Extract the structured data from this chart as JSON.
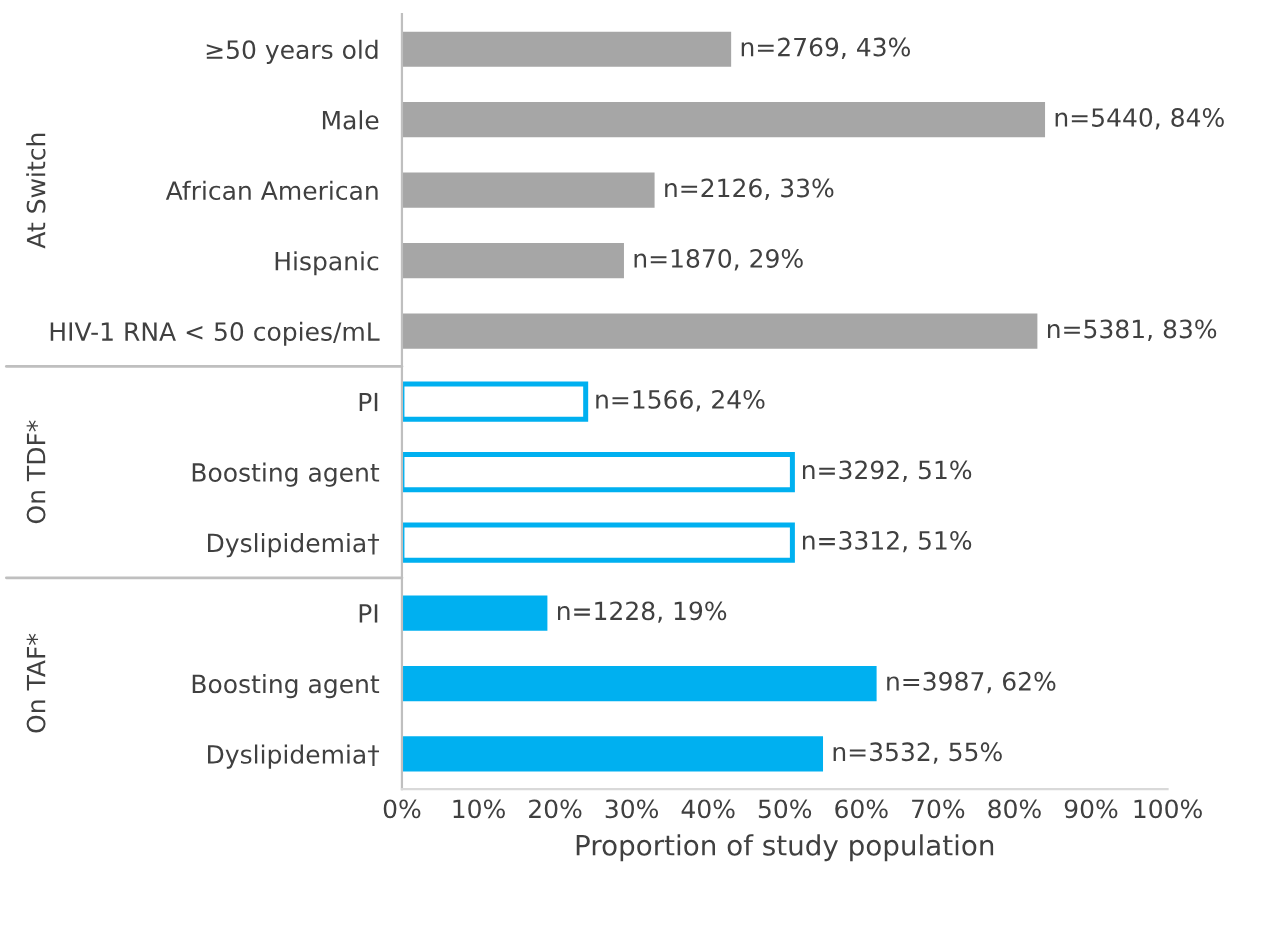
{
  "chart_data": {
    "type": "bar",
    "orientation": "horizontal",
    "xlabel": "Proportion of study population",
    "categories": [
      "≥50 years old",
      "Male",
      "African American",
      "Hispanic",
      "HIV-1 RNA < 50 copies/mL",
      "PI",
      "Boosting agent",
      "Dyslipidemia†",
      "PI",
      "Boosting agent",
      "Dyslipidemia†"
    ],
    "series": [
      {
        "color": "#a6a6a6",
        "values": [
          43,
          84,
          33,
          29,
          83,
          null,
          null,
          null,
          null,
          null,
          null
        ]
      },
      {
        "color": "#00b0f0",
        "line_style": "solid",
        "values": [
          null,
          null,
          null,
          null,
          null,
          24,
          51,
          51,
          null,
          null,
          null
        ]
      },
      {
        "color": "#00b0f0",
        "values": [
          null,
          null,
          null,
          null,
          null,
          null,
          null,
          null,
          19,
          62,
          55
        ]
      }
    ],
    "value_labels": [
      "n=2769, 43%",
      "n=5440, 84%",
      "n=2126, 33%",
      "n=1870, 29%",
      "n=5381, 83%",
      "n=1566, 24%",
      "n=3292, 51%",
      "n=3312, 51%",
      "n=1228, 19%",
      "n=3987, 62%",
      "n=3532, 55%"
    ],
    "xlim": [
      0,
      100
    ],
    "xticks": [
      {
        "value": 0,
        "label": "0%"
      },
      {
        "value": 10,
        "label": "10%"
      },
      {
        "value": 20,
        "label": "20%"
      },
      {
        "value": 30,
        "label": "30%"
      },
      {
        "value": 40,
        "label": "40%"
      },
      {
        "value": 50,
        "label": "50%"
      },
      {
        "value": 60,
        "label": "60%"
      },
      {
        "value": 70,
        "label": "70%"
      },
      {
        "value": 80,
        "label": "80%"
      },
      {
        "value": 90,
        "label": "90%"
      },
      {
        "value": 100,
        "label": "100%"
      }
    ],
    "annotations": [
      "At Switch",
      "On TDF*",
      "On TAF*"
    ],
    "grid": false,
    "legend": false
  }
}
